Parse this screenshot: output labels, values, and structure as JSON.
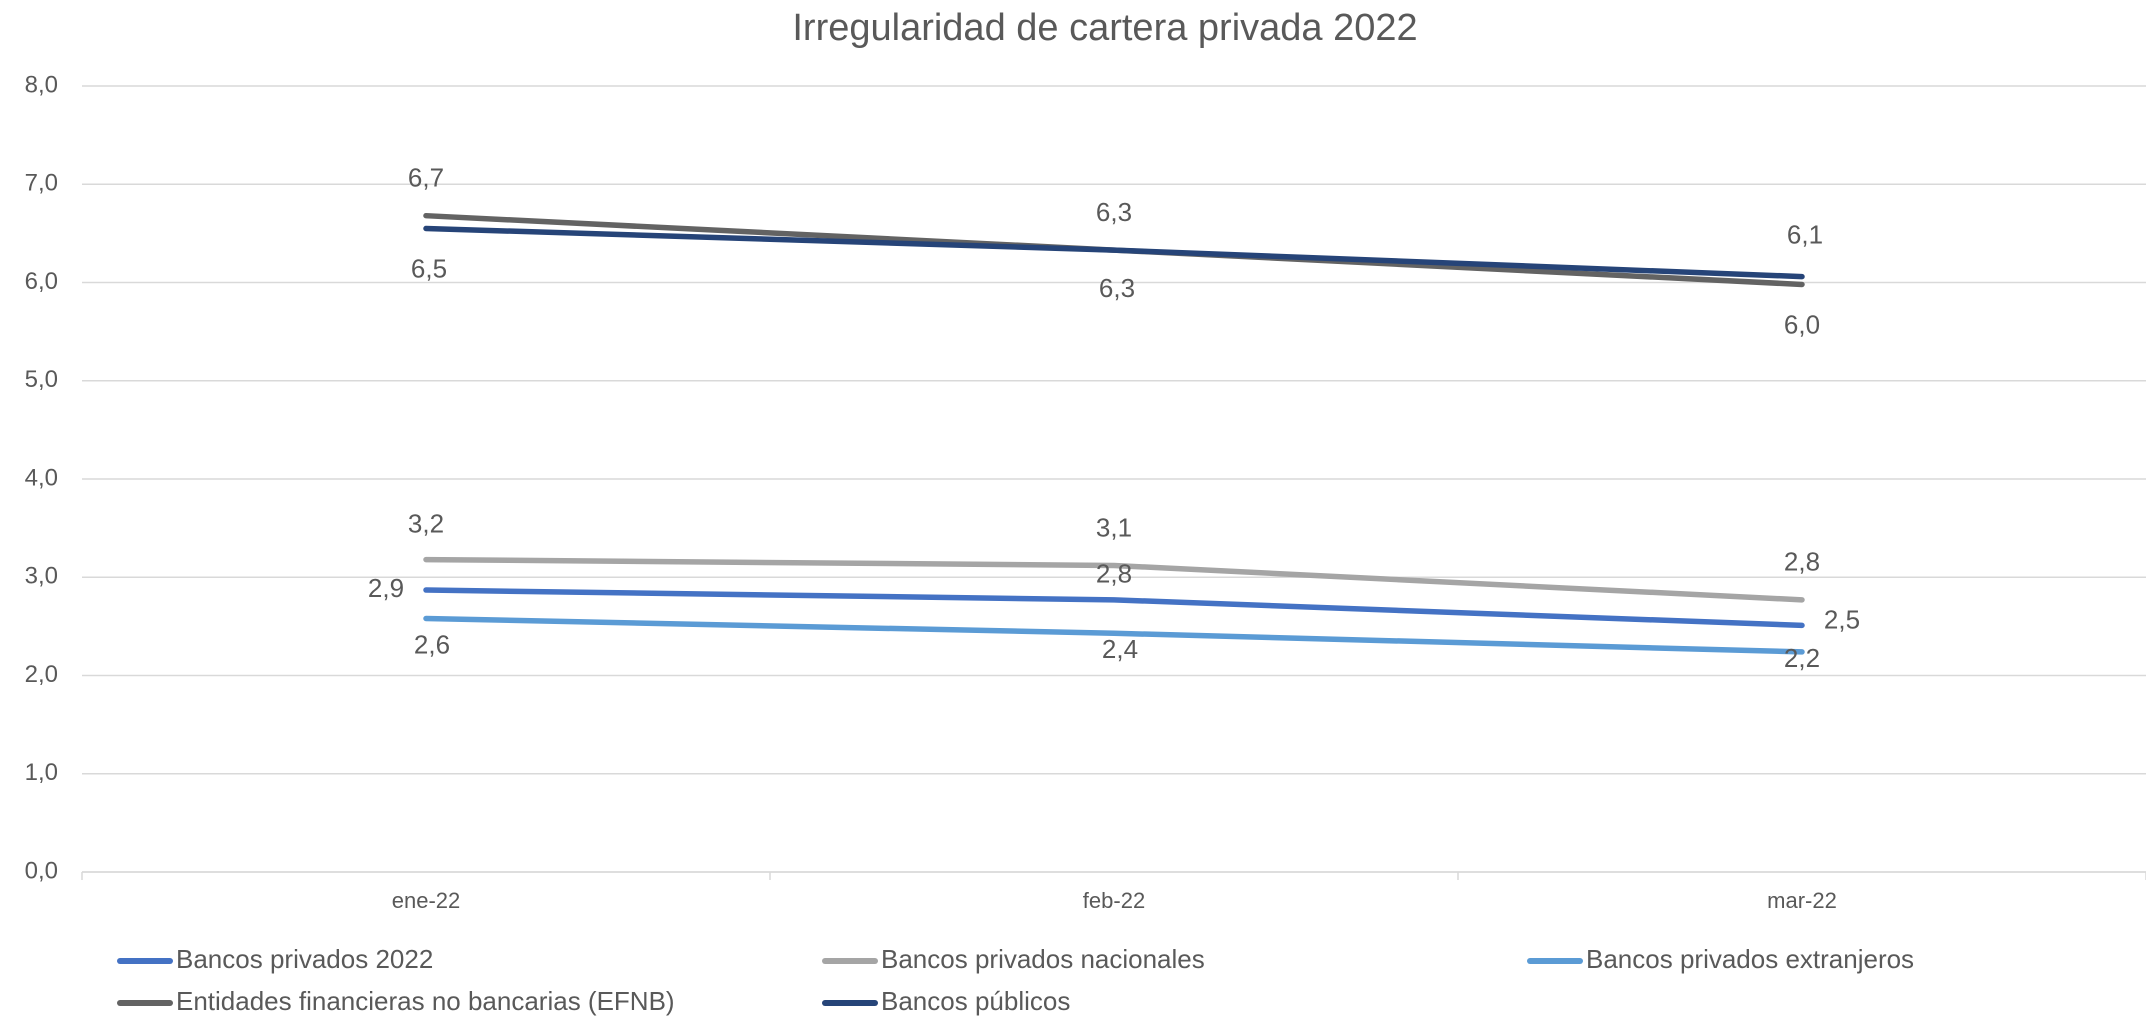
{
  "chart_data": {
    "type": "line",
    "title": "Irregularidad de cartera privada 2022",
    "categories": [
      "ene-22",
      "feb-22",
      "mar-22"
    ],
    "ylim": [
      0,
      8
    ],
    "yticks": [
      {
        "value": 0,
        "label": "0,0"
      },
      {
        "value": 1,
        "label": "1,0"
      },
      {
        "value": 2,
        "label": "2,0"
      },
      {
        "value": 3,
        "label": "3,0"
      },
      {
        "value": 4,
        "label": "4,0"
      },
      {
        "value": 5,
        "label": "5,0"
      },
      {
        "value": 6,
        "label": "6,0"
      },
      {
        "value": 7,
        "label": "7,0"
      },
      {
        "value": 8,
        "label": "8,0"
      }
    ],
    "grid": true,
    "legend": "bottom",
    "series": [
      {
        "name": "Bancos privados 2022",
        "color": "#4472c4",
        "values": [
          2.87,
          2.77,
          2.51
        ],
        "value_labels": [
          "2,9",
          "2,8",
          "2,5"
        ]
      },
      {
        "name": "Bancos privados nacionales",
        "color": "#a5a5a5",
        "values": [
          3.18,
          3.12,
          2.77
        ],
        "value_labels": [
          "3,2",
          "3,1",
          "2,8"
        ]
      },
      {
        "name": "Bancos privados extranjeros",
        "color": "#5b9bd5",
        "values": [
          2.58,
          2.43,
          2.24
        ],
        "value_labels": [
          "2,6",
          "2,4",
          "2,2"
        ]
      },
      {
        "name": "Entidades financieras no bancarias (EFNB)",
        "color": "#636363",
        "values": [
          6.68,
          6.33,
          5.98
        ],
        "value_labels": [
          "6,7",
          "6,3",
          "6,0"
        ]
      },
      {
        "name": "Bancos públicos",
        "color": "#264478",
        "values": [
          6.55,
          6.33,
          6.06
        ],
        "value_labels": [
          "6,5",
          "6,3",
          "6,1"
        ]
      }
    ]
  }
}
